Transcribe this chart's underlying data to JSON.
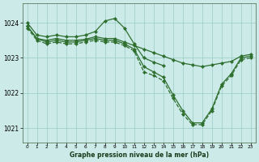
{
  "background_color": "#cceae8",
  "grid_color": "#a0d0cc",
  "line_color": "#2d6e2d",
  "title": "Graphe pression niveau de la mer (hPa)",
  "xlabel_ticks": [
    0,
    1,
    2,
    3,
    4,
    5,
    6,
    7,
    8,
    9,
    10,
    11,
    12,
    13,
    14,
    15,
    16,
    17,
    18,
    19,
    20,
    21,
    22,
    23
  ],
  "ylim": [
    1020.6,
    1024.55
  ],
  "yticks": [
    1021,
    1022,
    1023,
    1024
  ],
  "series": [
    {
      "x": [
        0,
        1,
        2,
        3,
        4,
        5,
        6,
        7,
        8,
        9,
        10,
        11,
        12,
        13,
        14
      ],
      "y": [
        1024.0,
        1023.65,
        1023.6,
        1023.65,
        1023.6,
        1023.6,
        1023.65,
        1023.75,
        1024.05,
        1024.12,
        1023.85,
        1023.4,
        1023.0,
        1022.88,
        1022.78
      ],
      "linestyle": "-",
      "marker": "D",
      "markersize": 2.2
    },
    {
      "x": [
        0,
        1,
        2,
        3,
        4,
        5,
        6,
        7,
        8,
        9,
        10,
        11,
        12,
        13,
        14,
        15,
        16,
        17,
        18,
        19,
        20,
        21,
        22,
        23
      ],
      "y": [
        1023.9,
        1023.55,
        1023.5,
        1023.55,
        1023.5,
        1023.5,
        1023.53,
        1023.6,
        1023.55,
        1023.55,
        1023.45,
        1023.35,
        1023.25,
        1023.15,
        1023.05,
        1022.95,
        1022.85,
        1022.8,
        1022.75,
        1022.8,
        1022.85,
        1022.9,
        1023.05,
        1023.1
      ],
      "linestyle": "-",
      "marker": "D",
      "markersize": 2.2
    },
    {
      "x": [
        0,
        1,
        2,
        3,
        4,
        5,
        6,
        7,
        8,
        9,
        10,
        11,
        12,
        13,
        14,
        15,
        16,
        17,
        18,
        19,
        20,
        21,
        22,
        23
      ],
      "y": [
        1023.9,
        1023.55,
        1023.45,
        1023.5,
        1023.45,
        1023.45,
        1023.5,
        1023.55,
        1023.5,
        1023.5,
        1023.4,
        1023.25,
        1022.75,
        1022.6,
        1022.45,
        1021.95,
        1021.5,
        1021.15,
        1021.15,
        1021.55,
        1022.25,
        1022.55,
        1023.0,
        1023.05
      ],
      "linestyle": "-",
      "marker": "D",
      "markersize": 2.2
    },
    {
      "x": [
        0,
        1,
        2,
        3,
        4,
        5,
        6,
        7,
        8,
        9,
        10,
        11,
        12,
        13,
        14,
        15,
        16,
        17,
        18,
        19,
        20,
        21,
        22,
        23
      ],
      "y": [
        1023.85,
        1023.5,
        1023.4,
        1023.45,
        1023.4,
        1023.4,
        1023.45,
        1023.5,
        1023.45,
        1023.45,
        1023.35,
        1023.2,
        1022.6,
        1022.5,
        1022.35,
        1021.85,
        1021.4,
        1021.1,
        1021.1,
        1021.5,
        1022.2,
        1022.5,
        1022.95,
        1023.0
      ],
      "linestyle": "--",
      "marker": "D",
      "markersize": 2.2
    }
  ]
}
